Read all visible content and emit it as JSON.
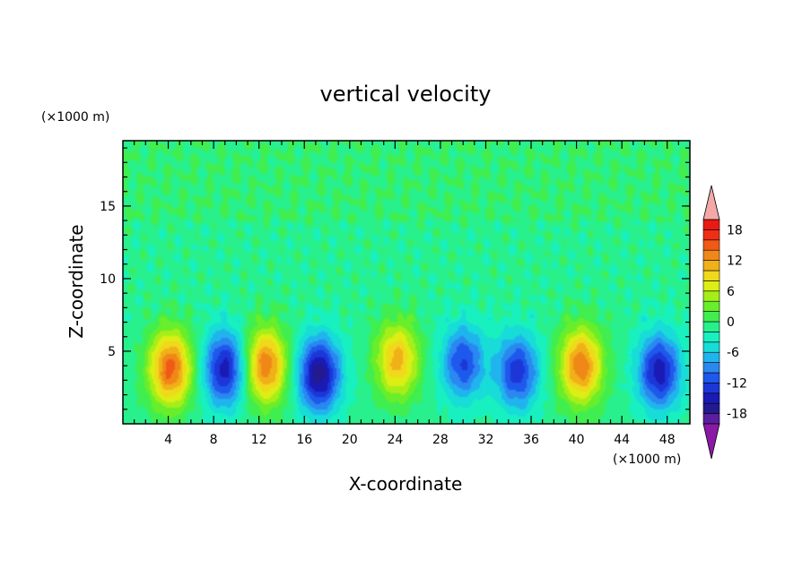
{
  "chart_data": {
    "type": "heatmap",
    "title": "vertical velocity",
    "xlabel": "X-coordinate",
    "ylabel": "Z-coordinate",
    "x_unit": "(×1000 m)",
    "y_unit": "(×1000 m)",
    "xlim": [
      0,
      50
    ],
    "ylim": [
      0,
      19.5
    ],
    "x_ticks": [
      4,
      8,
      12,
      16,
      20,
      24,
      28,
      32,
      36,
      40,
      44,
      48
    ],
    "y_ticks": [
      5,
      10,
      15
    ],
    "colorbar": {
      "levels": [
        -20,
        -18,
        -16,
        -14,
        -12,
        -10,
        -8,
        -6,
        -4,
        -2,
        0,
        2,
        4,
        6,
        8,
        10,
        12,
        14,
        16,
        18,
        20
      ],
      "tick_labels": [
        18,
        12,
        6,
        0,
        -6,
        -12,
        -18
      ],
      "colors": [
        "#5a1e9e",
        "#221a8e",
        "#1a1ab4",
        "#1c36d8",
        "#1e58ec",
        "#2a88f0",
        "#20b4ee",
        "#18dcd8",
        "#18f0c0",
        "#28f08c",
        "#40ee50",
        "#68ee2a",
        "#a6ee1a",
        "#dcee14",
        "#f0d81c",
        "#f0b018",
        "#f08818",
        "#f05a16",
        "#f02e14",
        "#e81a12"
      ],
      "extend_low_color": "#8a1aa6",
      "extend_high_color": "#f4a8a8"
    },
    "cells": [
      {
        "x": 4.2,
        "z": 3.8,
        "peak": 16
      },
      {
        "x": 9.0,
        "z": 3.8,
        "peak": -14
      },
      {
        "x": 12.6,
        "z": 4.0,
        "peak": 15
      },
      {
        "x": 17.3,
        "z": 3.4,
        "peak": -16
      },
      {
        "x": 24.2,
        "z": 4.4,
        "peak": 12
      },
      {
        "x": 30.0,
        "z": 4.2,
        "peak": -11
      },
      {
        "x": 34.8,
        "z": 3.6,
        "peak": -12
      },
      {
        "x": 40.4,
        "z": 4.0,
        "peak": 15
      },
      {
        "x": 47.3,
        "z": 3.6,
        "peak": -14
      }
    ]
  }
}
